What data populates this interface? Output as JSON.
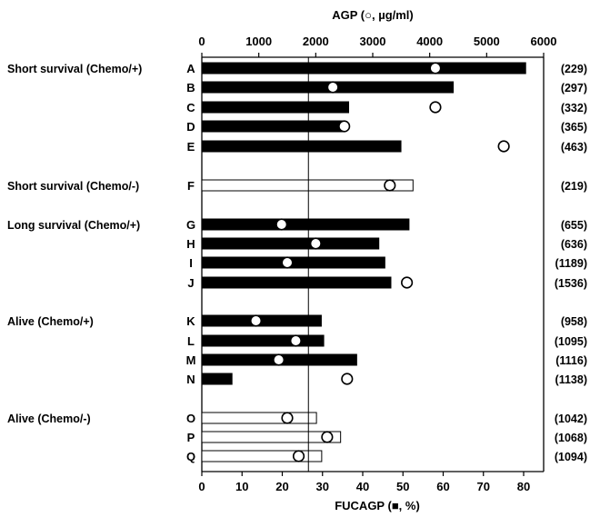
{
  "chart_data": {
    "type": "bar",
    "top_axis": {
      "title_prefix": "AGP (",
      "title_symbol": "○",
      "title_suffix": ", µg/ml)",
      "range": [
        0,
        6000
      ],
      "ticks": [
        "0",
        "1000",
        "2000",
        "3000",
        "4000",
        "5000",
        "6000"
      ]
    },
    "bottom_axis": {
      "title_prefix": "FUCAGP (",
      "title_symbol": "■",
      "title_suffix": ", %)",
      "range": [
        0,
        85
      ],
      "ticks": [
        "0",
        "10",
        "20",
        "30",
        "40",
        "50",
        "60",
        "70",
        "80"
      ]
    },
    "reference_line_fucagp": 26.5,
    "groups": [
      {
        "label": "Short survival (Chemo/+)",
        "rows": [
          "A",
          "B",
          "C",
          "D",
          "E"
        ]
      },
      {
        "label": "Short survival (Chemo/-)",
        "rows": [
          "F"
        ]
      },
      {
        "label": "Long survival (Chemo/+)",
        "rows": [
          "G",
          "H",
          "I",
          "J"
        ]
      },
      {
        "label": "Alive (Chemo/+)",
        "rows": [
          "K",
          "L",
          "M",
          "N"
        ]
      },
      {
        "label": "Alive (Chemo/-)",
        "rows": [
          "O",
          "P",
          "Q"
        ]
      }
    ],
    "rows": [
      {
        "letter": "A",
        "fucagp": 80.5,
        "agp": 4100,
        "chemo": true,
        "count": "(229)"
      },
      {
        "letter": "B",
        "fucagp": 62.5,
        "agp": 2300,
        "chemo": true,
        "count": "(297)"
      },
      {
        "letter": "C",
        "fucagp": 36.5,
        "agp": 4100,
        "chemo": true,
        "count": "(332)"
      },
      {
        "letter": "D",
        "fucagp": 35.5,
        "agp": 2500,
        "chemo": true,
        "count": "(365)"
      },
      {
        "letter": "E",
        "fucagp": 49.5,
        "agp": 5300,
        "chemo": true,
        "count": "(463)"
      },
      {
        "letter": "F",
        "fucagp": 52.5,
        "agp": 3300,
        "chemo": false,
        "count": "(219)"
      },
      {
        "letter": "G",
        "fucagp": 51.5,
        "agp": 1400,
        "chemo": true,
        "count": "(655)"
      },
      {
        "letter": "H",
        "fucagp": 44.0,
        "agp": 2000,
        "chemo": true,
        "count": "(636)"
      },
      {
        "letter": "I",
        "fucagp": 45.5,
        "agp": 1500,
        "chemo": true,
        "count": "(1189)"
      },
      {
        "letter": "J",
        "fucagp": 47.0,
        "agp": 3600,
        "chemo": true,
        "count": "(1536)"
      },
      {
        "letter": "K",
        "fucagp": 29.7,
        "agp": 950,
        "chemo": true,
        "count": "(958)"
      },
      {
        "letter": "L",
        "fucagp": 30.3,
        "agp": 1650,
        "chemo": true,
        "count": "(1095)"
      },
      {
        "letter": "M",
        "fucagp": 38.5,
        "agp": 1350,
        "chemo": true,
        "count": "(1116)"
      },
      {
        "letter": "N",
        "fucagp": 7.5,
        "agp": 2550,
        "chemo": true,
        "count": "(1138)"
      },
      {
        "letter": "O",
        "fucagp": 28.5,
        "agp": 1500,
        "chemo": false,
        "count": "(1042)"
      },
      {
        "letter": "P",
        "fucagp": 34.5,
        "agp": 2200,
        "chemo": false,
        "count": "(1068)"
      },
      {
        "letter": "Q",
        "fucagp": 29.8,
        "agp": 1700,
        "chemo": false,
        "count": "(1094)"
      }
    ]
  }
}
